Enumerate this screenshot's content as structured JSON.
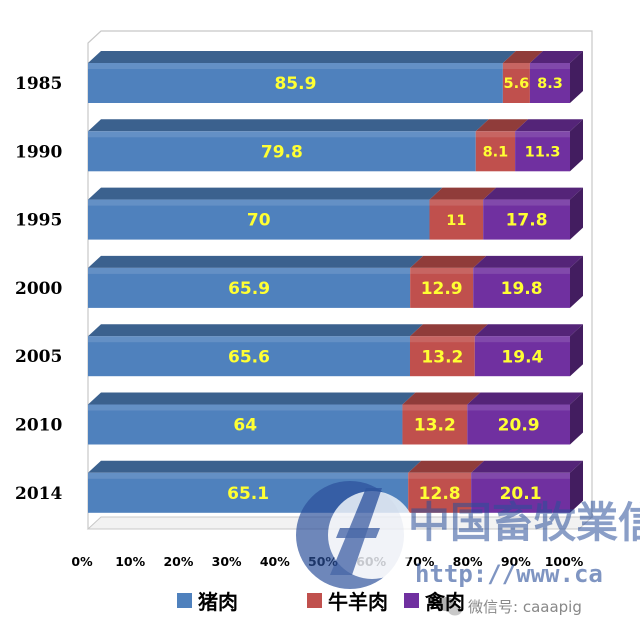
{
  "chart_data": {
    "type": "bar",
    "orientation": "horizontal",
    "stacked": "percent",
    "categories": [
      "1985",
      "1990",
      "1995",
      "2000",
      "2005",
      "2010",
      "2014"
    ],
    "series": [
      {
        "name": "猪肉",
        "color": "#4f81bd",
        "values": [
          85.9,
          79.8,
          70,
          65.9,
          65.6,
          64,
          65.1
        ]
      },
      {
        "name": "牛羊肉",
        "color": "#c0504d",
        "values": [
          5.6,
          8.1,
          11,
          12.9,
          13.2,
          13.2,
          12.8
        ]
      },
      {
        "name": "禽肉",
        "color": "#7030a0",
        "values": [
          8.3,
          11.3,
          17.8,
          19.8,
          19.4,
          20.9,
          20.1
        ]
      }
    ],
    "data_labels": [
      [
        "85.9",
        "5.6",
        "8.3"
      ],
      [
        "79.8",
        "8.1",
        "11.3"
      ],
      [
        "70",
        "11",
        "17.8"
      ],
      [
        "65.9",
        "12.9",
        "19.8"
      ],
      [
        "65.6",
        "13.2",
        "19.4"
      ],
      [
        "64",
        "13.2",
        "20.9"
      ],
      [
        "65.1",
        "12.8",
        "20.1"
      ]
    ],
    "x_ticks": [
      "0%",
      "10%",
      "20%",
      "30%",
      "40%",
      "50%",
      "60%",
      "70%",
      "80%",
      "90%",
      "100%"
    ],
    "xlim": [
      0,
      100
    ],
    "legend_position": "bottom",
    "style": "3d"
  },
  "watermark": {
    "org_name": "中国畜牧業信",
    "url": "http://www.ca",
    "wechat": "微信号: caaapig"
  }
}
